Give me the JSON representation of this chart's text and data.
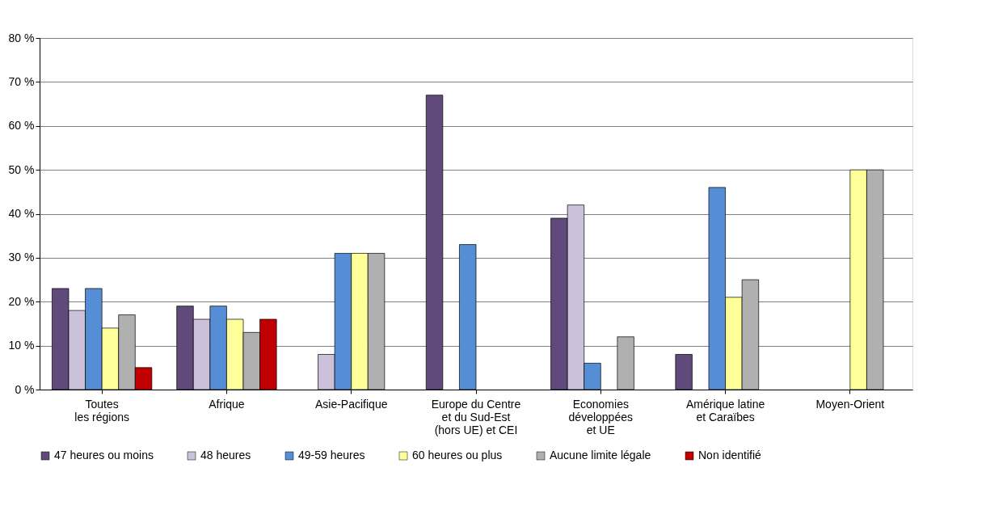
{
  "chart_data": {
    "type": "bar",
    "categories": [
      "Toutes\nles régions",
      "Afrique",
      "Asie-Pacifique",
      "Europe du Centre\net du Sud-Est\n(hors UE) et CEI",
      "Economies\ndéveloppées\net  UE",
      "Amérique latine\net Caraïbes",
      "Moyen-Orient"
    ],
    "series": [
      {
        "name": "47 heures ou moins",
        "color": "#604a7b",
        "values": [
          23,
          19,
          null,
          67,
          39,
          8,
          null
        ]
      },
      {
        "name": "48 heures",
        "color": "#ccc1da",
        "values": [
          18,
          16,
          8,
          null,
          42,
          null,
          null
        ]
      },
      {
        "name": "49-59 heures",
        "color": "#558ed5",
        "values": [
          23,
          19,
          31,
          33,
          6,
          46,
          null
        ]
      },
      {
        "name": "60 heures ou plus",
        "color": "#ffff99",
        "values": [
          14,
          16,
          31,
          null,
          null,
          21,
          50
        ]
      },
      {
        "name": "Aucune limite légale",
        "color": "#b0b0b0",
        "values": [
          17,
          13,
          31,
          null,
          12,
          25,
          50
        ]
      },
      {
        "name": "Non identifié",
        "color": "#c00000",
        "values": [
          5,
          16,
          null,
          null,
          null,
          null,
          null
        ]
      }
    ],
    "ylim": [
      0,
      80
    ],
    "yticks": [
      {
        "value": 0,
        "label": "0 %"
      },
      {
        "value": 10,
        "label": "10 %"
      },
      {
        "value": 20,
        "label": "20 %"
      },
      {
        "value": 30,
        "label": "30 %"
      },
      {
        "value": 40,
        "label": "40 %"
      },
      {
        "value": 50,
        "label": "50 %"
      },
      {
        "value": 60,
        "label": "60 %"
      },
      {
        "value": 70,
        "label": "70 %"
      },
      {
        "value": 80,
        "label": "80 %"
      }
    ],
    "grid": "y",
    "legend": "bottom"
  }
}
